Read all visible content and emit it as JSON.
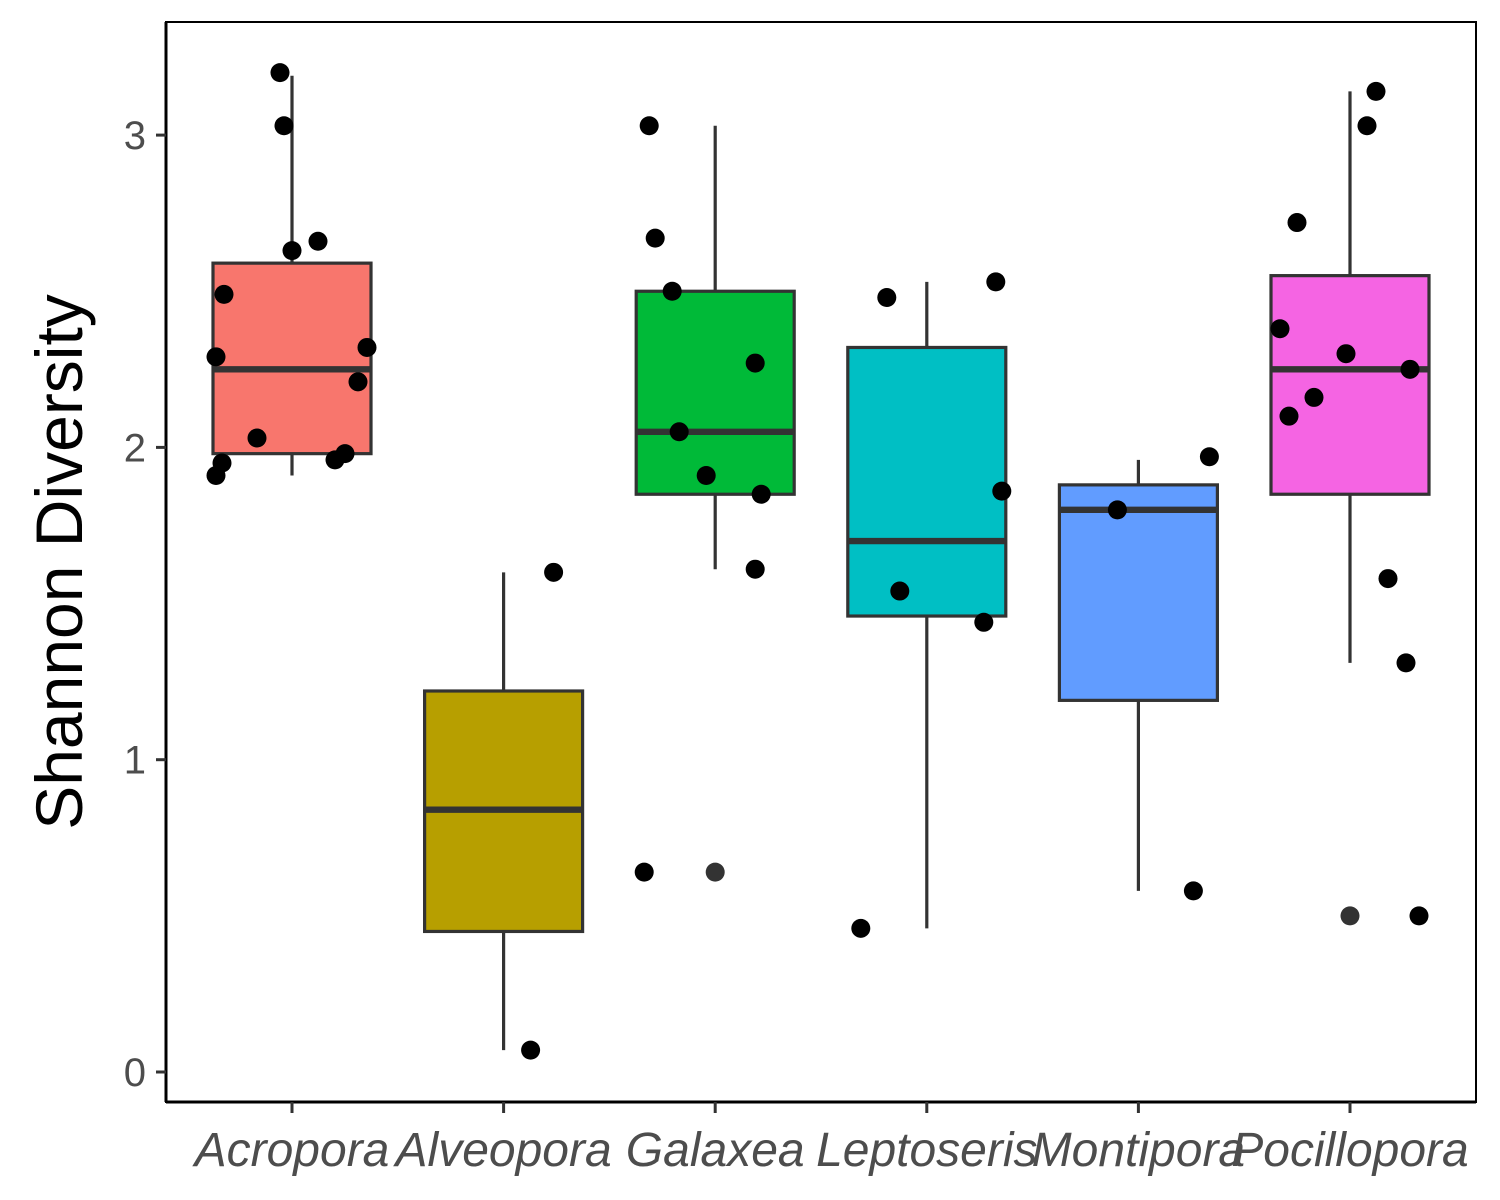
{
  "chart_data": {
    "type": "box",
    "ylabel": "Shannon Diversity",
    "xlabel": "",
    "ylim": [
      -0.1,
      3.47
    ],
    "yticks": [
      0,
      1,
      2,
      3
    ],
    "ytick_labels": [
      "0",
      "1",
      "2",
      "3"
    ],
    "categories": [
      "Acropora",
      "Alveopora",
      "Galaxea",
      "Leptoseris",
      "Montipora",
      "Pocillopora"
    ],
    "colors": [
      "#F8766D",
      "#B79F00",
      "#00BA38",
      "#00BFC4",
      "#619CFF",
      "#F564E3"
    ],
    "grid": false,
    "legend": "none",
    "boxes": [
      {
        "category": "Acropora",
        "whisker_low": 1.91,
        "q1": 1.98,
        "median": 2.25,
        "q3": 2.59,
        "whisker_high": 3.19
      },
      {
        "category": "Alveopora",
        "whisker_low": 0.07,
        "q1": 0.45,
        "median": 0.84,
        "q3": 1.22,
        "whisker_high": 1.6
      },
      {
        "category": "Galaxea",
        "whisker_low": 1.61,
        "q1": 1.85,
        "median": 2.05,
        "q3": 2.5,
        "whisker_high": 3.03
      },
      {
        "category": "Leptoseris",
        "whisker_low": 0.46,
        "q1": 1.46,
        "median": 1.7,
        "q3": 2.32,
        "whisker_high": 2.53
      },
      {
        "category": "Montipora",
        "whisker_low": 0.58,
        "q1": 1.19,
        "median": 1.8,
        "q3": 1.88,
        "whisker_high": 1.96
      },
      {
        "category": "Pocillopora",
        "whisker_low": 1.31,
        "q1": 1.85,
        "median": 2.25,
        "q3": 2.55,
        "whisker_high": 3.14
      }
    ],
    "outliers": [
      {
        "category": "Galaxea",
        "y": 0.64
      },
      {
        "category": "Pocillopora",
        "y": 0.5
      }
    ],
    "points": [
      {
        "category": "Acropora",
        "offset": -0.12,
        "y": 3.2
      },
      {
        "category": "Acropora",
        "offset": -0.08,
        "y": 3.03
      },
      {
        "category": "Acropora",
        "offset": 0.0,
        "y": 2.63
      },
      {
        "category": "Acropora",
        "offset": 0.26,
        "y": 2.66
      },
      {
        "category": "Acropora",
        "offset": -0.68,
        "y": 2.49
      },
      {
        "category": "Acropora",
        "offset": -0.76,
        "y": 2.29
      },
      {
        "category": "Acropora",
        "offset": 0.75,
        "y": 2.32
      },
      {
        "category": "Acropora",
        "offset": 0.66,
        "y": 2.21
      },
      {
        "category": "Acropora",
        "offset": -0.35,
        "y": 2.03
      },
      {
        "category": "Acropora",
        "offset": 0.53,
        "y": 1.98
      },
      {
        "category": "Acropora",
        "offset": 0.43,
        "y": 1.96
      },
      {
        "category": "Acropora",
        "offset": -0.7,
        "y": 1.95
      },
      {
        "category": "Acropora",
        "offset": -0.76,
        "y": 1.91
      },
      {
        "category": "Alveopora",
        "offset": 0.5,
        "y": 1.6
      },
      {
        "category": "Alveopora",
        "offset": 0.27,
        "y": 0.07
      },
      {
        "category": "Galaxea",
        "offset": -0.66,
        "y": 3.03
      },
      {
        "category": "Galaxea",
        "offset": -0.6,
        "y": 2.67
      },
      {
        "category": "Galaxea",
        "offset": -0.43,
        "y": 2.5
      },
      {
        "category": "Galaxea",
        "offset": 0.4,
        "y": 2.27
      },
      {
        "category": "Galaxea",
        "offset": -0.36,
        "y": 2.05
      },
      {
        "category": "Galaxea",
        "offset": -0.09,
        "y": 1.91
      },
      {
        "category": "Galaxea",
        "offset": 0.46,
        "y": 1.85
      },
      {
        "category": "Galaxea",
        "offset": 0.4,
        "y": 1.61
      },
      {
        "category": "Galaxea",
        "offset": -0.71,
        "y": 0.64
      },
      {
        "category": "Leptoseris",
        "offset": -0.4,
        "y": 2.48
      },
      {
        "category": "Leptoseris",
        "offset": 0.69,
        "y": 2.53
      },
      {
        "category": "Leptoseris",
        "offset": 0.75,
        "y": 1.86
      },
      {
        "category": "Leptoseris",
        "offset": -0.27,
        "y": 1.54
      },
      {
        "category": "Leptoseris",
        "offset": 0.57,
        "y": 1.44
      },
      {
        "category": "Leptoseris",
        "offset": -0.66,
        "y": 0.46
      },
      {
        "category": "Montipora",
        "offset": 0.71,
        "y": 1.97
      },
      {
        "category": "Montipora",
        "offset": -0.21,
        "y": 1.8
      },
      {
        "category": "Montipora",
        "offset": 0.55,
        "y": 0.58
      },
      {
        "category": "Pocillopora",
        "offset": 0.26,
        "y": 3.14
      },
      {
        "category": "Pocillopora",
        "offset": 0.17,
        "y": 3.03
      },
      {
        "category": "Pocillopora",
        "offset": -0.53,
        "y": 2.72
      },
      {
        "category": "Pocillopora",
        "offset": -0.7,
        "y": 2.38
      },
      {
        "category": "Pocillopora",
        "offset": -0.04,
        "y": 2.3
      },
      {
        "category": "Pocillopora",
        "offset": 0.6,
        "y": 2.25
      },
      {
        "category": "Pocillopora",
        "offset": -0.36,
        "y": 2.16
      },
      {
        "category": "Pocillopora",
        "offset": -0.61,
        "y": 2.1
      },
      {
        "category": "Pocillopora",
        "offset": 0.38,
        "y": 1.58
      },
      {
        "category": "Pocillopora",
        "offset": 0.56,
        "y": 1.31
      },
      {
        "category": "Pocillopora",
        "offset": 0.69,
        "y": 0.5
      }
    ]
  }
}
